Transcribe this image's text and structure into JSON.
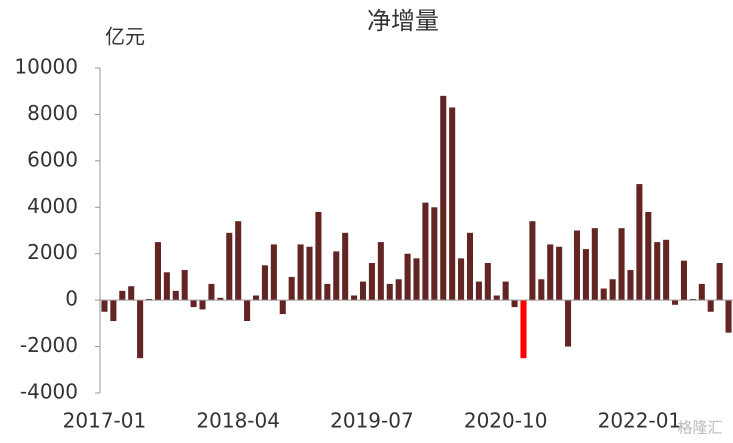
{
  "chart_data": {
    "type": "bar",
    "title": "净增量",
    "y_unit_label": "亿元",
    "watermark": "格隆汇",
    "categories": [
      "2017-01",
      null,
      null,
      null,
      null,
      null,
      null,
      null,
      null,
      null,
      null,
      null,
      null,
      null,
      null,
      "2018-04",
      null,
      null,
      null,
      null,
      null,
      null,
      null,
      null,
      null,
      null,
      null,
      null,
      null,
      null,
      "2019-07",
      null,
      null,
      null,
      null,
      null,
      null,
      null,
      null,
      null,
      null,
      null,
      null,
      null,
      null,
      "2020-10",
      null,
      null,
      null,
      null,
      null,
      null,
      null,
      null,
      null,
      null,
      null,
      null,
      null,
      null,
      "2022-01",
      null,
      null,
      null,
      null,
      null,
      null,
      null,
      null,
      null,
      null
    ],
    "values": [
      -500,
      -900,
      400,
      600,
      -2500,
      50,
      2500,
      1200,
      400,
      1300,
      -300,
      -400,
      700,
      100,
      2900,
      3400,
      -900,
      200,
      1500,
      2400,
      -600,
      1000,
      2400,
      2300,
      3800,
      700,
      2100,
      2900,
      200,
      800,
      1600,
      2500,
      700,
      900,
      2000,
      1800,
      4200,
      4000,
      8800,
      8300,
      1800,
      2900,
      800,
      1600,
      200,
      800,
      -300,
      -2500,
      3400,
      900,
      2400,
      2300,
      -2000,
      3000,
      2200,
      3100,
      500,
      900,
      3100,
      1300,
      5000,
      3800,
      2500,
      2600,
      -200,
      1700,
      50,
      700,
      -500,
      1600,
      -1400
    ],
    "color": "#632523",
    "colors": [
      "#632523",
      "#632523",
      "#632523",
      "#632523",
      "#632523",
      "#632523",
      "#632523",
      "#632523",
      "#632523",
      "#632523",
      "#632523",
      "#632523",
      "#632523",
      "#632523",
      "#632523",
      "#632523",
      "#632523",
      "#632523",
      "#632523",
      "#632523",
      "#632523",
      "#632523",
      "#632523",
      "#632523",
      "#632523",
      "#632523",
      "#632523",
      "#632523",
      "#632523",
      "#632523",
      "#632523",
      "#632523",
      "#632523",
      "#632523",
      "#632523",
      "#632523",
      "#632523",
      "#632523",
      "#632523",
      "#632523",
      "#632523",
      "#632523",
      "#632523",
      "#632523",
      "#632523",
      "#632523",
      "#632523",
      "#ff0000",
      "#632523",
      "#632523",
      "#632523",
      "#632523",
      "#632523",
      "#632523",
      "#632523",
      "#632523",
      "#632523",
      "#632523",
      "#632523",
      "#632523",
      "#632523",
      "#632523",
      "#632523",
      "#632523",
      "#632523",
      "#632523",
      "#632523",
      "#632523",
      "#632523",
      "#632523",
      "#632523"
    ],
    "ylim": [
      -4000,
      10000
    ],
    "yticks": [
      -4000,
      -2000,
      0,
      2000,
      4000,
      6000,
      8000,
      10000
    ],
    "grid": false
  }
}
